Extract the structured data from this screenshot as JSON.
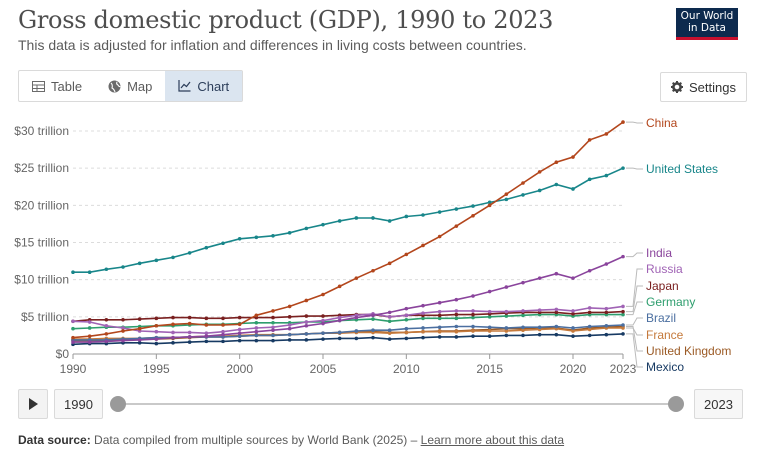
{
  "header": {
    "title": "Gross domestic product (GDP), 1990 to 2023",
    "subtitle": "This data is adjusted for inflation and differences in living costs between countries.",
    "logo_line1": "Our World",
    "logo_line2": "in Data"
  },
  "tabs": [
    {
      "label": "Table",
      "icon": "table-icon"
    },
    {
      "label": "Map",
      "icon": "globe-icon"
    },
    {
      "label": "Chart",
      "icon": "line-chart-icon",
      "active": true
    }
  ],
  "settings_label": "Settings",
  "timeline": {
    "start_label": "1990",
    "end_label": "2023"
  },
  "footer": {
    "source_label": "Data source:",
    "source_text": "Data compiled from multiple sources by World Bank (2025) –",
    "link_text": "Learn more about this data"
  },
  "chart_data": {
    "type": "line",
    "title": "Gross domestic product (GDP), 1990 to 2023",
    "xlim": [
      1990,
      2023
    ],
    "ylim": [
      0,
      30
    ],
    "y_ticks": [
      {
        "value": 0,
        "label": "$0"
      },
      {
        "value": 5,
        "label": "$5 trillion"
      },
      {
        "value": 10,
        "label": "$10 trillion"
      },
      {
        "value": 15,
        "label": "$15 trillion"
      },
      {
        "value": 20,
        "label": "$20 trillion"
      },
      {
        "value": 25,
        "label": "$25 trillion"
      },
      {
        "value": 30,
        "label": "$30 trillion"
      }
    ],
    "x_ticks": [
      {
        "value": 1990,
        "label": "1990"
      },
      {
        "value": 1995,
        "label": "1995"
      },
      {
        "value": 2000,
        "label": "2000"
      },
      {
        "value": 2005,
        "label": "2005"
      },
      {
        "value": 2010,
        "label": "2010"
      },
      {
        "value": 2015,
        "label": "2015"
      },
      {
        "value": 2020,
        "label": "2020"
      },
      {
        "value": 2023,
        "label": "2023"
      }
    ],
    "grid": true,
    "legend": "right",
    "series": [
      {
        "name": "China",
        "color": "#b3461c",
        "values": [
          2.2,
          2.4,
          2.7,
          3.1,
          3.4,
          3.8,
          4.0,
          4.1,
          3.9,
          3.9,
          4.0,
          5.2,
          5.8,
          6.4,
          7.2,
          8.0,
          9.1,
          10.2,
          11.2,
          12.2,
          13.4,
          14.6,
          15.8,
          17.2,
          18.6,
          20.0,
          21.5,
          23.0,
          24.5,
          25.8,
          26.5,
          28.8,
          29.6,
          31.2
        ]
      },
      {
        "name": "United States",
        "color": "#18868a",
        "values": [
          11.0,
          11.0,
          11.4,
          11.7,
          12.2,
          12.6,
          13.0,
          13.6,
          14.3,
          14.9,
          15.5,
          15.7,
          15.9,
          16.3,
          16.9,
          17.4,
          17.9,
          18.3,
          18.3,
          17.9,
          18.5,
          18.7,
          19.1,
          19.5,
          19.9,
          20.4,
          20.8,
          21.4,
          22.0,
          22.8,
          22.2,
          23.5,
          24.0,
          25.0
        ]
      },
      {
        "name": "India",
        "color": "#8a449c",
        "values": [
          1.6,
          1.6,
          1.7,
          1.8,
          1.9,
          2.0,
          2.2,
          2.3,
          2.4,
          2.6,
          2.8,
          3.0,
          3.2,
          3.4,
          3.8,
          4.1,
          4.5,
          4.9,
          5.2,
          5.6,
          6.1,
          6.5,
          6.9,
          7.3,
          7.8,
          8.4,
          9.0,
          9.6,
          10.2,
          10.8,
          10.2,
          11.2,
          12.1,
          13.1
        ]
      },
      {
        "name": "Russia",
        "color": "#a063b5",
        "values": [
          4.4,
          4.3,
          3.8,
          3.5,
          3.1,
          3.0,
          2.9,
          2.9,
          2.8,
          3.0,
          3.3,
          3.5,
          3.6,
          3.9,
          4.3,
          4.5,
          4.9,
          5.2,
          5.4,
          5.0,
          5.2,
          5.5,
          5.7,
          5.8,
          5.8,
          5.7,
          5.7,
          5.8,
          5.9,
          6.0,
          5.8,
          6.2,
          6.1,
          6.4
        ]
      },
      {
        "name": "Japan",
        "color": "#7a2020",
        "values": [
          4.4,
          4.6,
          4.6,
          4.6,
          4.7,
          4.8,
          4.9,
          4.9,
          4.8,
          4.8,
          4.9,
          4.9,
          4.9,
          5.0,
          5.1,
          5.1,
          5.2,
          5.3,
          5.3,
          5.0,
          5.2,
          5.2,
          5.2,
          5.3,
          5.3,
          5.4,
          5.5,
          5.6,
          5.6,
          5.6,
          5.4,
          5.6,
          5.6,
          5.7
        ]
      },
      {
        "name": "Germany",
        "color": "#2e9e6e",
        "values": [
          3.4,
          3.5,
          3.6,
          3.6,
          3.7,
          3.8,
          3.8,
          3.9,
          4.0,
          4.0,
          4.1,
          4.2,
          4.2,
          4.2,
          4.3,
          4.3,
          4.5,
          4.6,
          4.7,
          4.4,
          4.6,
          4.8,
          4.8,
          4.8,
          4.9,
          5.0,
          5.1,
          5.2,
          5.3,
          5.3,
          5.1,
          5.3,
          5.3,
          5.3
        ]
      },
      {
        "name": "Brazil",
        "color": "#4b6fa0",
        "values": [
          1.9,
          1.9,
          1.9,
          2.0,
          2.1,
          2.2,
          2.2,
          2.3,
          2.3,
          2.3,
          2.4,
          2.5,
          2.5,
          2.6,
          2.7,
          2.8,
          2.9,
          3.1,
          3.2,
          3.2,
          3.4,
          3.5,
          3.6,
          3.7,
          3.7,
          3.6,
          3.5,
          3.6,
          3.6,
          3.7,
          3.5,
          3.7,
          3.8,
          3.9
        ]
      },
      {
        "name": "France",
        "color": "#c57a3c",
        "values": [
          2.0,
          2.0,
          2.1,
          2.1,
          2.1,
          2.2,
          2.2,
          2.3,
          2.4,
          2.4,
          2.5,
          2.6,
          2.6,
          2.6,
          2.7,
          2.8,
          2.8,
          2.9,
          2.9,
          2.8,
          2.9,
          3.0,
          3.0,
          3.0,
          3.1,
          3.1,
          3.1,
          3.2,
          3.3,
          3.4,
          3.1,
          3.3,
          3.5,
          3.5
        ]
      },
      {
        "name": "United Kingdom",
        "color": "#9b5a25",
        "values": [
          1.8,
          1.8,
          1.8,
          1.9,
          2.0,
          2.0,
          2.1,
          2.2,
          2.3,
          2.3,
          2.4,
          2.5,
          2.5,
          2.6,
          2.7,
          2.8,
          2.9,
          3.0,
          3.0,
          2.9,
          2.9,
          3.0,
          3.1,
          3.1,
          3.2,
          3.3,
          3.4,
          3.4,
          3.5,
          3.5,
          3.2,
          3.5,
          3.6,
          3.7
        ]
      },
      {
        "name": "Mexico",
        "color": "#173a63",
        "values": [
          1.3,
          1.4,
          1.4,
          1.5,
          1.5,
          1.4,
          1.5,
          1.6,
          1.7,
          1.7,
          1.8,
          1.8,
          1.8,
          1.9,
          1.9,
          2.0,
          2.1,
          2.1,
          2.2,
          2.0,
          2.1,
          2.2,
          2.3,
          2.3,
          2.4,
          2.4,
          2.5,
          2.5,
          2.6,
          2.6,
          2.4,
          2.5,
          2.6,
          2.7
        ]
      }
    ]
  }
}
